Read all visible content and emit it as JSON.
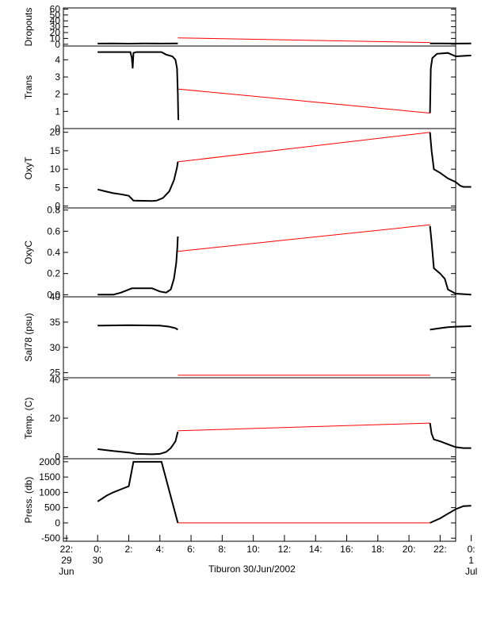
{
  "caption": "Tiburon 30/Jun/2002",
  "colors": {
    "data": "#000000",
    "gap": "#ff0000",
    "axis": "#000000"
  },
  "chart_data": {
    "type": "line",
    "x_unit": "hours since 2002-06-30 00:00",
    "xlim": [
      -2.2,
      23.0
    ],
    "x_ticks": [
      {
        "v": -2,
        "l1": "22:",
        "l2": "29",
        "l3": "Jun"
      },
      {
        "v": 0,
        "l1": "0:",
        "l2": "30",
        "l3": ""
      },
      {
        "v": 2,
        "l1": "2:",
        "l2": "",
        "l3": ""
      },
      {
        "v": 4,
        "l1": "4:",
        "l2": "",
        "l3": ""
      },
      {
        "v": 6,
        "l1": "6:",
        "l2": "",
        "l3": ""
      },
      {
        "v": 8,
        "l1": "8:",
        "l2": "",
        "l3": ""
      },
      {
        "v": 10,
        "l1": "10:",
        "l2": "",
        "l3": ""
      },
      {
        "v": 12,
        "l1": "12:",
        "l2": "",
        "l3": ""
      },
      {
        "v": 14,
        "l1": "14:",
        "l2": "",
        "l3": ""
      },
      {
        "v": 16,
        "l1": "16:",
        "l2": "",
        "l3": ""
      },
      {
        "v": 18,
        "l1": "18:",
        "l2": "",
        "l3": ""
      },
      {
        "v": 20,
        "l1": "20:",
        "l2": "",
        "l3": ""
      },
      {
        "v": 22,
        "l1": "22:",
        "l2": "",
        "l3": ""
      },
      {
        "v": 24,
        "l1": "0:",
        "l2": "1",
        "l3": "Jul"
      }
    ],
    "panels": [
      {
        "ylabel": "Dropouts",
        "ylim": [
          -3,
          62
        ],
        "yticks": [
          {
            "v": 0,
            "l": "0"
          },
          {
            "v": 10,
            "l": "10"
          },
          {
            "v": 20,
            "l": "20"
          },
          {
            "v": 30,
            "l": "30"
          },
          {
            "v": 40,
            "l": "40"
          },
          {
            "v": 50,
            "l": "50"
          },
          {
            "v": 60,
            "l": "60"
          }
        ],
        "segments": [
          [
            [
              0.0,
              1.2
            ],
            [
              1.0,
              1.5
            ],
            [
              2.0,
              1.0
            ],
            [
              3.0,
              1.4
            ],
            [
              4.0,
              1.2
            ],
            [
              5.15,
              1.3
            ]
          ],
          [
            [
              21.35,
              1.3
            ],
            [
              22.0,
              1.5
            ],
            [
              23.0,
              1.2
            ],
            [
              24.0,
              1.3
            ]
          ]
        ],
        "gaps": [
          [
            [
              5.15,
              11.0
            ],
            [
              21.35,
              3.0
            ]
          ]
        ]
      },
      {
        "ylabel": "Trans",
        "ylim": [
          0,
          4.8
        ],
        "yticks": [
          {
            "v": 0,
            "l": "0"
          },
          {
            "v": 1,
            "l": "1"
          },
          {
            "v": 2,
            "l": "2"
          },
          {
            "v": 3,
            "l": "3"
          },
          {
            "v": 4,
            "l": "4"
          }
        ],
        "segments": [
          [
            [
              0.0,
              4.45
            ],
            [
              2.1,
              4.45
            ],
            [
              2.2,
              4.1
            ],
            [
              2.25,
              3.5
            ],
            [
              2.3,
              4.4
            ],
            [
              2.5,
              4.45
            ],
            [
              4.1,
              4.45
            ],
            [
              4.4,
              4.3
            ],
            [
              4.8,
              4.2
            ],
            [
              5.0,
              4.0
            ],
            [
              5.1,
              3.5
            ],
            [
              5.15,
              2.0
            ],
            [
              5.18,
              0.5
            ]
          ],
          [
            [
              21.35,
              0.9
            ],
            [
              21.4,
              3.5
            ],
            [
              21.5,
              4.1
            ],
            [
              21.8,
              4.35
            ],
            [
              22.5,
              4.4
            ],
            [
              23.0,
              4.2
            ],
            [
              24.0,
              4.25
            ]
          ]
        ],
        "gaps": [
          [
            [
              5.18,
              2.3
            ],
            [
              21.35,
              0.9
            ]
          ]
        ]
      },
      {
        "ylabel": "OxyT",
        "ylim": [
          -0.5,
          21
        ],
        "yticks": [
          {
            "v": 0,
            "l": "0"
          },
          {
            "v": 5,
            "l": "5"
          },
          {
            "v": 10,
            "l": "10"
          },
          {
            "v": 15,
            "l": "15"
          },
          {
            "v": 20,
            "l": "20"
          }
        ],
        "segments": [
          [
            [
              0.0,
              4.5
            ],
            [
              0.5,
              4.0
            ],
            [
              1.0,
              3.5
            ],
            [
              1.5,
              3.2
            ],
            [
              2.0,
              2.8
            ],
            [
              2.3,
              1.5
            ],
            [
              3.5,
              1.4
            ],
            [
              3.8,
              1.5
            ],
            [
              4.2,
              2.2
            ],
            [
              4.6,
              4.0
            ],
            [
              4.9,
              7.0
            ],
            [
              5.1,
              10.5
            ],
            [
              5.15,
              12.0
            ]
          ],
          [
            [
              21.35,
              20.0
            ],
            [
              21.45,
              15.0
            ],
            [
              21.6,
              10.0
            ],
            [
              22.0,
              9.0
            ],
            [
              22.5,
              7.5
            ],
            [
              23.0,
              6.5
            ],
            [
              23.3,
              5.5
            ],
            [
              23.5,
              5.2
            ],
            [
              24.0,
              5.2
            ]
          ]
        ],
        "gaps": [
          [
            [
              5.15,
              12.0
            ],
            [
              21.35,
              20.0
            ]
          ]
        ]
      },
      {
        "ylabel": "OxyC",
        "ylim": [
          -0.02,
          0.82
        ],
        "yticks": [
          {
            "v": 0,
            "l": "0.0"
          },
          {
            "v": 0.2,
            "l": "0.2"
          },
          {
            "v": 0.4,
            "l": "0.4"
          },
          {
            "v": 0.6,
            "l": "0.6"
          },
          {
            "v": 0.8,
            "l": "0.8"
          }
        ],
        "segments": [
          [
            [
              0.0,
              0.0
            ],
            [
              1.0,
              0.0
            ],
            [
              1.5,
              0.02
            ],
            [
              2.2,
              0.06
            ],
            [
              3.5,
              0.06
            ],
            [
              4.0,
              0.03
            ],
            [
              4.4,
              0.02
            ],
            [
              4.7,
              0.05
            ],
            [
              4.9,
              0.15
            ],
            [
              5.05,
              0.3
            ],
            [
              5.12,
              0.45
            ],
            [
              5.15,
              0.55
            ]
          ],
          [
            [
              21.35,
              0.65
            ],
            [
              21.45,
              0.5
            ],
            [
              21.6,
              0.25
            ],
            [
              22.0,
              0.2
            ],
            [
              22.3,
              0.15
            ],
            [
              22.5,
              0.05
            ],
            [
              23.0,
              0.01
            ],
            [
              24.0,
              0.0
            ]
          ]
        ],
        "gaps": [
          [
            [
              5.15,
              0.41
            ],
            [
              21.35,
              0.66
            ]
          ]
        ]
      },
      {
        "ylabel": "Sal78 (psu)",
        "ylim": [
          24,
          40
        ],
        "yticks": [
          {
            "v": 25,
            "l": "25"
          },
          {
            "v": 30,
            "l": "30"
          },
          {
            "v": 35,
            "l": "35"
          },
          {
            "v": 40,
            "l": "40"
          }
        ],
        "segments": [
          [
            [
              0.0,
              34.3
            ],
            [
              2.0,
              34.4
            ],
            [
              4.0,
              34.3
            ],
            [
              4.6,
              34.1
            ],
            [
              5.0,
              33.8
            ],
            [
              5.15,
              33.5
            ]
          ],
          [
            [
              21.35,
              33.5
            ],
            [
              22.0,
              33.8
            ],
            [
              22.5,
              34.0
            ],
            [
              23.0,
              34.1
            ],
            [
              24.0,
              34.2
            ]
          ]
        ],
        "gaps": [
          [
            [
              5.15,
              24.5
            ],
            [
              21.35,
              24.5
            ]
          ]
        ]
      },
      {
        "ylabel": "Temp. (C)",
        "ylim": [
          -1,
          41
        ],
        "yticks": [
          {
            "v": 0,
            "l": "0"
          },
          {
            "v": 20,
            "l": "20"
          },
          {
            "v": 40,
            "l": "40"
          }
        ],
        "segments": [
          [
            [
              0.0,
              4.0
            ],
            [
              1.0,
              3.0
            ],
            [
              2.0,
              2.2
            ],
            [
              2.5,
              1.5
            ],
            [
              3.5,
              1.3
            ],
            [
              4.0,
              1.5
            ],
            [
              4.4,
              2.5
            ],
            [
              4.7,
              4.5
            ],
            [
              5.0,
              8.0
            ],
            [
              5.15,
              13.0
            ]
          ],
          [
            [
              21.35,
              17.5
            ],
            [
              21.45,
              12.0
            ],
            [
              21.6,
              9.0
            ],
            [
              22.0,
              8.0
            ],
            [
              22.5,
              6.5
            ],
            [
              23.0,
              5.0
            ],
            [
              23.5,
              4.5
            ],
            [
              24.0,
              4.5
            ]
          ]
        ],
        "gaps": [
          [
            [
              5.15,
              13.5
            ],
            [
              21.35,
              17.5
            ]
          ]
        ]
      },
      {
        "ylabel": "Press. (db)",
        "ylim": [
          -600,
          2100
        ],
        "yticks": [
          {
            "v": -500,
            "l": "-500"
          },
          {
            "v": 0,
            "l": "0"
          },
          {
            "v": 500,
            "l": "500"
          },
          {
            "v": 1000,
            "l": "1000"
          },
          {
            "v": 1500,
            "l": "1500"
          },
          {
            "v": 2000,
            "l": "2000"
          }
        ],
        "segments": [
          [
            [
              0.0,
              700
            ],
            [
              0.3,
              800
            ],
            [
              0.6,
              900
            ],
            [
              1.0,
              1000
            ],
            [
              1.5,
              1100
            ],
            [
              2.0,
              1200
            ],
            [
              2.3,
              2000
            ],
            [
              2.6,
              2000
            ],
            [
              4.1,
              2000
            ],
            [
              5.15,
              0
            ]
          ],
          [
            [
              21.35,
              0
            ],
            [
              22.0,
              150
            ],
            [
              22.5,
              300
            ],
            [
              23.0,
              450
            ],
            [
              23.5,
              550
            ],
            [
              24.0,
              560
            ]
          ]
        ],
        "gaps": [
          [
            [
              5.15,
              0
            ],
            [
              21.35,
              0
            ]
          ]
        ]
      }
    ]
  }
}
